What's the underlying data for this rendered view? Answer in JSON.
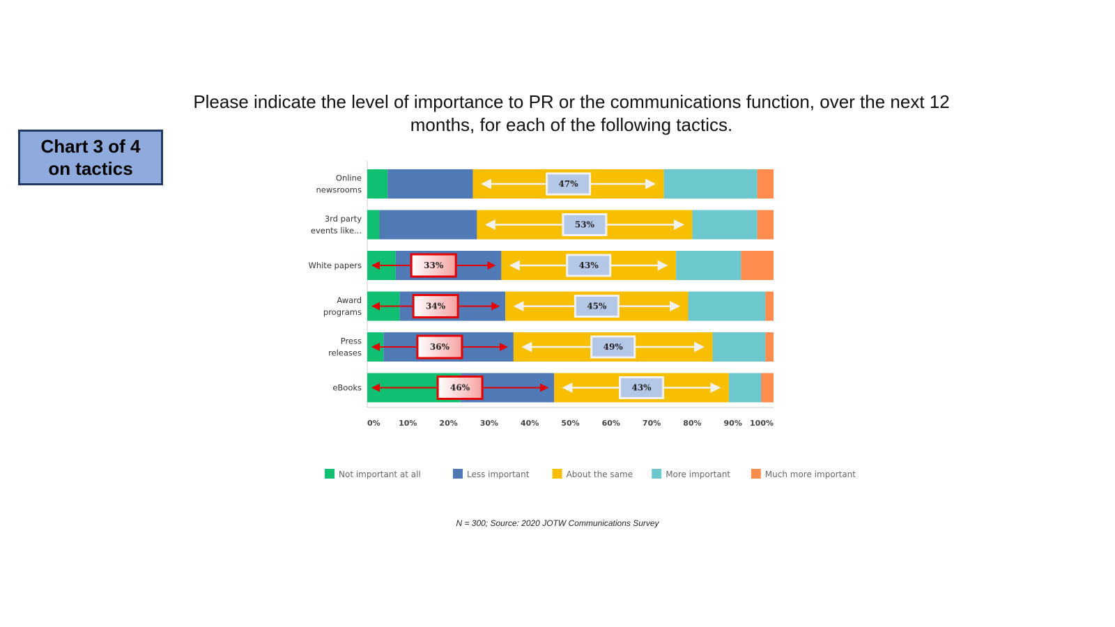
{
  "badge": {
    "text": "Chart 3 of 4\non tactics"
  },
  "title": "Please indicate the level of importance to PR or the communications function, over the next 12 months, for each of the following tactics.",
  "footnote": "N = 300; Source: 2020 JOTW Communications Survey",
  "colors": {
    "not_important": "#10bf72",
    "less_important": "#4f7ab5",
    "about_same": "#f8bf00",
    "more_important": "#6cc8cc",
    "much_more": "#fe8c4f",
    "callout_red_border": "#e60000",
    "callout_blue_fill": "#b4c7e7"
  },
  "chart_data": {
    "type": "bar",
    "orientation": "horizontal",
    "stacked": true,
    "categories": [
      "Online newsrooms",
      "3rd party events like...",
      "White papers",
      "Award programs",
      "Press releases",
      "eBooks"
    ],
    "series": [
      {
        "name": "Not important at all",
        "color": "#10bf72",
        "values": [
          5,
          3,
          7,
          8,
          4,
          23
        ]
      },
      {
        "name": "Less important",
        "color": "#4f7ab5",
        "values": [
          21,
          24,
          26,
          26,
          32,
          23
        ]
      },
      {
        "name": "About the same",
        "color": "#f8bf00",
        "values": [
          47,
          53,
          43,
          45,
          49,
          43
        ]
      },
      {
        "name": "More important",
        "color": "#6cc8cc",
        "values": [
          23,
          16,
          16,
          19,
          13,
          8
        ]
      },
      {
        "name": "Much more important",
        "color": "#fe8c4f",
        "values": [
          4,
          4,
          8,
          2,
          2,
          3
        ]
      }
    ],
    "xlim": [
      0,
      100
    ],
    "xticks": [
      "0%",
      "10%",
      "20%",
      "30%",
      "40%",
      "50%",
      "60%",
      "70%",
      "80%",
      "90%",
      "100%"
    ],
    "legend_position": "bottom",
    "annotations": {
      "about_same": [
        "47%",
        "53%",
        "43%",
        "45%",
        "49%",
        "43%"
      ],
      "not_or_less": [
        null,
        null,
        "33%",
        "34%",
        "36%",
        "46%"
      ]
    }
  }
}
